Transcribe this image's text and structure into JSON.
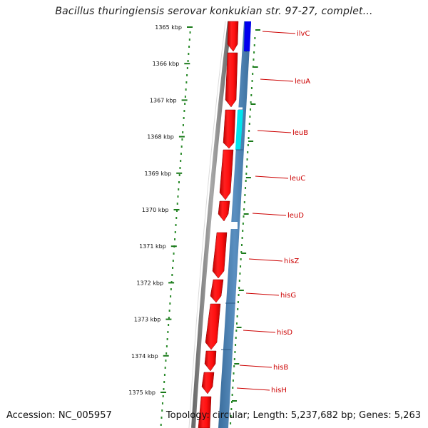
{
  "title": "Bacillus thuringiensis serovar konkukian str. 97-27, complet...",
  "footer": {
    "accession": "Accession: NC_005957",
    "summary": "Topology: circular; Length: 5,237,682 bp; Genes: 5,263"
  },
  "ruler": {
    "ticks": [
      "1365 kbp",
      "1366 kbp",
      "1367 kbp",
      "1368 kbp",
      "1369 kbp",
      "1370 kbp",
      "1371 kbp",
      "1372 kbp",
      "1373 kbp",
      "1374 kbp",
      "1375 kbp"
    ]
  },
  "genes": [
    {
      "name": "ilvC",
      "color": "#cc0000"
    },
    {
      "name": "leuA",
      "color": "#cc0000"
    },
    {
      "name": "leuB",
      "color": "#cc0000"
    },
    {
      "name": "leuC",
      "color": "#cc0000"
    },
    {
      "name": "leuD",
      "color": "#cc0000"
    },
    {
      "name": "hisZ",
      "color": "#cc0000"
    },
    {
      "name": "hisG",
      "color": "#cc0000"
    },
    {
      "name": "hisD",
      "color": "#cc0000"
    },
    {
      "name": "hisB",
      "color": "#cc0000"
    },
    {
      "name": "hisH",
      "color": "#cc0000"
    }
  ],
  "colors": {
    "backbone": "#808080",
    "cds_forward": "#ff0000",
    "feature_track": "#4682b4",
    "feature_highlight_blue": "#0000ee",
    "feature_highlight_cyan": "#00e5ee",
    "ruler_major": "#1a7a1a",
    "ruler_minor": "#2a8a2a"
  }
}
